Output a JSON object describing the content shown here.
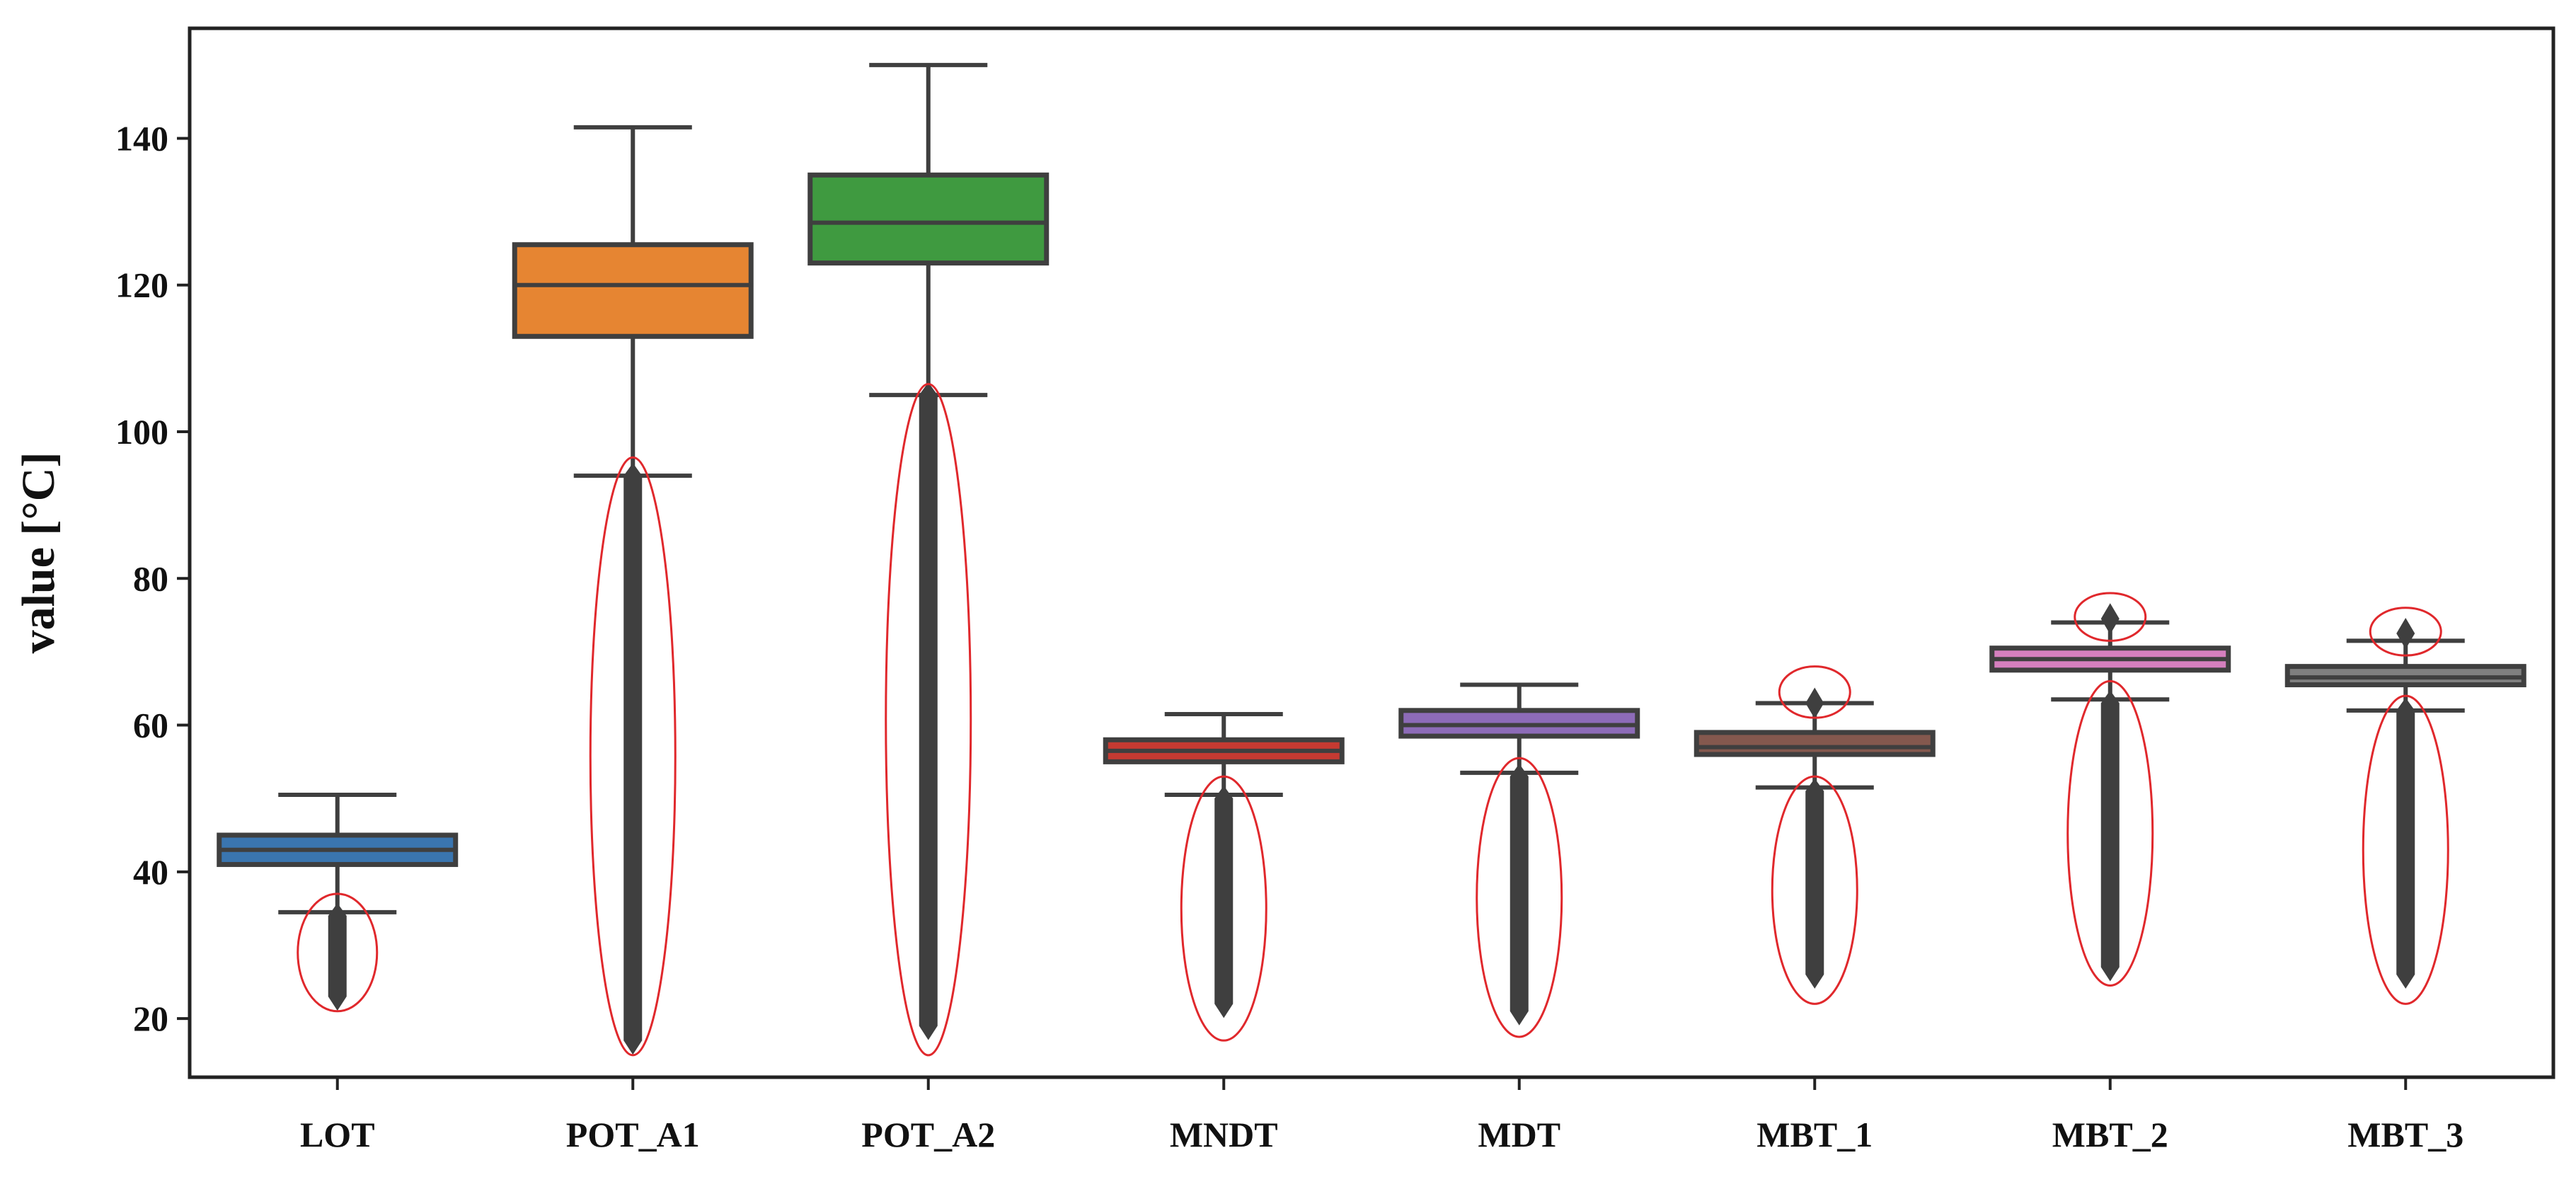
{
  "chart_data": {
    "type": "box",
    "title": "",
    "xlabel": "",
    "ylabel": "value [°C]",
    "ylim": [
      12,
      155
    ],
    "yticks": [
      20,
      40,
      60,
      80,
      100,
      120,
      140
    ],
    "grid": false,
    "legend": "none",
    "categories": [
      "LOT",
      "POT_A1",
      "POT_A2",
      "MNDT",
      "MDT",
      "MBT_1",
      "MBT_2",
      "MBT_3"
    ],
    "series": [
      {
        "category": "LOT",
        "color": "#3a75af",
        "whisker_low": 34.5,
        "q1": 41,
        "median": 43,
        "q3": 45,
        "whisker_high": 50.5,
        "outliers_low": [
          23,
          34
        ],
        "outliers_high": null
      },
      {
        "category": "POT_A1",
        "color": "#e68532",
        "whisker_low": 94,
        "q1": 113,
        "median": 120,
        "q3": 125.5,
        "whisker_high": 141.5,
        "outliers_low": [
          17,
          94
        ],
        "outliers_high": null
      },
      {
        "category": "POT_A2",
        "color": "#3f9a40",
        "whisker_low": 105,
        "q1": 123,
        "median": 128.5,
        "q3": 135,
        "whisker_high": 150,
        "outliers_low": [
          19,
          105
        ],
        "outliers_high": null
      },
      {
        "category": "MNDT",
        "color": "#c53a32",
        "whisker_low": 50.5,
        "q1": 55,
        "median": 56.5,
        "q3": 58,
        "whisker_high": 61.5,
        "outliers_low": [
          22,
          50
        ],
        "outliers_high": null
      },
      {
        "category": "MDT",
        "color": "#8d6bb8",
        "whisker_low": 53.5,
        "q1": 58.5,
        "median": 60,
        "q3": 62,
        "whisker_high": 65.5,
        "outliers_low": [
          21,
          53
        ],
        "outliers_high": null
      },
      {
        "category": "MBT_1",
        "color": "#84584e",
        "whisker_low": 51.5,
        "q1": 56,
        "median": 57,
        "q3": 59,
        "whisker_high": 63,
        "outliers_low": [
          26,
          51
        ],
        "outliers_high": [
          63,
          63
        ]
      },
      {
        "category": "MBT_2",
        "color": "#d57fbe",
        "whisker_low": 63.5,
        "q1": 67.5,
        "median": 69,
        "q3": 70.5,
        "whisker_high": 74,
        "outliers_low": [
          27,
          63
        ],
        "outliers_high": [
          74.5,
          74.5
        ]
      },
      {
        "category": "MBT_3",
        "color": "#7f7f7f",
        "whisker_low": 62,
        "q1": 65.5,
        "median": 66.5,
        "q3": 68,
        "whisker_high": 71.5,
        "outliers_low": [
          26,
          62
        ],
        "outliers_high": [
          72.5,
          72.5
        ]
      }
    ],
    "annotations": {
      "ellipse_color": "#e0282c",
      "ellipses": [
        {
          "category": "LOT",
          "low": 21,
          "high": 37
        },
        {
          "category": "POT_A1",
          "low": 15,
          "high": 96.5
        },
        {
          "category": "POT_A2",
          "low": 15,
          "high": 106.5
        },
        {
          "category": "MNDT",
          "low": 17,
          "high": 53
        },
        {
          "category": "MDT",
          "low": 17.5,
          "high": 55.5
        },
        {
          "category": "MBT_1",
          "low": 22,
          "high": 53
        },
        {
          "category": "MBT_1",
          "low": 61,
          "high": 68
        },
        {
          "category": "MBT_2",
          "low": 24.5,
          "high": 66
        },
        {
          "category": "MBT_2",
          "low": 71.5,
          "high": 78
        },
        {
          "category": "MBT_3",
          "low": 22,
          "high": 64
        },
        {
          "category": "MBT_3",
          "low": 69.5,
          "high": 76
        }
      ]
    }
  }
}
